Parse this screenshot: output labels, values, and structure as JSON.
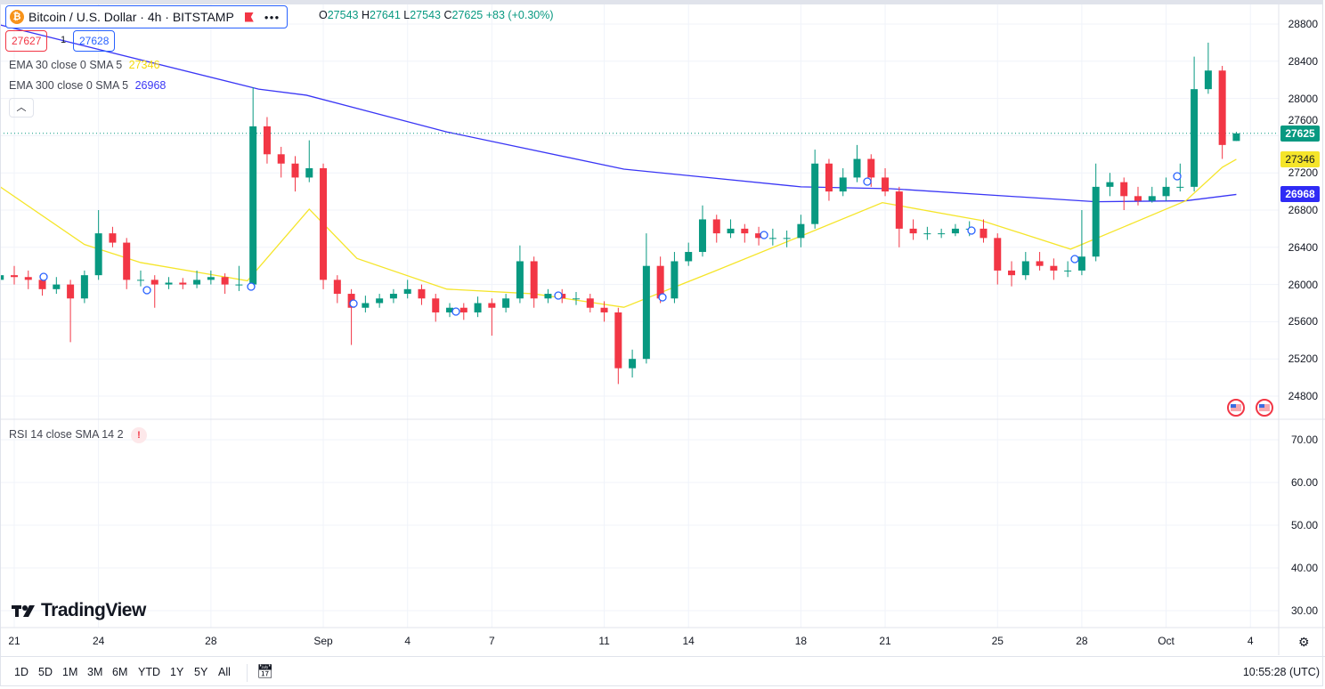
{
  "header": {
    "symbol_title": "Bitcoin / U.S. Dollar · 4h · BITSTAMP",
    "symbol_icon": "bitcoin-icon",
    "ohlc": {
      "o_label": "O",
      "o": "27543",
      "h_label": "H",
      "h": "27641",
      "l_label": "L",
      "l": "27543",
      "c_label": "C",
      "c": "27625",
      "change": "+83 (+0.30%)"
    },
    "sell_price": "27627",
    "spread": "1",
    "buy_price": "27628"
  },
  "indicators": [
    {
      "label": "EMA 30 close 0 SMA 5",
      "value": "27346",
      "color": "#f5e52a"
    },
    {
      "label": "EMA 300 close 0 SMA 5",
      "value": "26968",
      "color": "#3a36f5"
    }
  ],
  "rsi_pane": {
    "label": "RSI 14 close SMA 14 2",
    "warning_icon": "!",
    "ticks": [
      "70.00",
      "60.00",
      "50.00",
      "40.00",
      "30.00"
    ]
  },
  "price_axis": {
    "ticks": [
      "28800",
      "28400",
      "28000",
      "27600",
      "27200",
      "26800",
      "26400",
      "26000",
      "25600",
      "25200",
      "24800"
    ],
    "last_price": "27625",
    "ema30_tag": "27346",
    "ema300_tag": "26968"
  },
  "time_axis": {
    "ticks": [
      {
        "label": "21",
        "day": 0
      },
      {
        "label": "24",
        "day": 3
      },
      {
        "label": "28",
        "day": 7
      },
      {
        "label": "Sep",
        "day": 11
      },
      {
        "label": "4",
        "day": 14
      },
      {
        "label": "7",
        "day": 17
      },
      {
        "label": "11",
        "day": 21
      },
      {
        "label": "14",
        "day": 24
      },
      {
        "label": "18",
        "day": 28
      },
      {
        "label": "21",
        "day": 31
      },
      {
        "label": "25",
        "day": 35
      },
      {
        "label": "28",
        "day": 38
      },
      {
        "label": "Oct",
        "day": 41
      },
      {
        "label": "4",
        "day": 44
      }
    ]
  },
  "toolbar": {
    "ranges": [
      "1D",
      "5D",
      "1M",
      "3M",
      "6M",
      "YTD",
      "1Y",
      "5Y",
      "All"
    ],
    "time": "10:55:28 (UTC)"
  },
  "brand": "TradingView",
  "colors": {
    "up": "#089981",
    "down": "#f23645",
    "ema30": "#f5e52a",
    "ema300": "#3a36f5",
    "accent": "#2962ff"
  },
  "chart_data": {
    "type": "candlestick",
    "ylim": [
      24700,
      28900
    ],
    "candles_note_columns": [
      "day",
      "open",
      "high",
      "low",
      "close"
    ],
    "candles": [
      [
        -0.5,
        26050,
        26180,
        25980,
        26100
      ],
      [
        0,
        26100,
        26200,
        26000,
        26080
      ],
      [
        0.5,
        26080,
        26150,
        25950,
        26050
      ],
      [
        1,
        26050,
        26120,
        25880,
        25950
      ],
      [
        1.5,
        25950,
        26080,
        25900,
        26000
      ],
      [
        2,
        26000,
        26050,
        25380,
        25850
      ],
      [
        2.5,
        25850,
        26150,
        25800,
        26100
      ],
      [
        3,
        26100,
        26800,
        26050,
        26550
      ],
      [
        3.5,
        26550,
        26620,
        26400,
        26450
      ],
      [
        4,
        26450,
        26500,
        25950,
        26050
      ],
      [
        4.5,
        26050,
        26150,
        25980,
        26050
      ],
      [
        5,
        26050,
        26100,
        25750,
        26000
      ],
      [
        5.5,
        26000,
        26080,
        25950,
        26020
      ],
      [
        6,
        26020,
        26070,
        25950,
        26000
      ],
      [
        6.5,
        26000,
        26150,
        25960,
        26050
      ],
      [
        7,
        26050,
        26150,
        26000,
        26080
      ],
      [
        7.5,
        26080,
        26120,
        25900,
        26000
      ],
      [
        8,
        26000,
        26200,
        25930,
        26000
      ],
      [
        8.5,
        26000,
        28120,
        25980,
        27700
      ],
      [
        9,
        27700,
        27800,
        27300,
        27400
      ],
      [
        9.5,
        27400,
        27480,
        27150,
        27300
      ],
      [
        10,
        27300,
        27380,
        27000,
        27150
      ],
      [
        10.5,
        27150,
        27550,
        27100,
        27250
      ],
      [
        11,
        27250,
        27300,
        25950,
        26050
      ],
      [
        11.5,
        26050,
        26100,
        25800,
        25900
      ],
      [
        12,
        25900,
        25950,
        25350,
        25750
      ],
      [
        12.5,
        25750,
        25880,
        25700,
        25800
      ],
      [
        13,
        25800,
        25900,
        25750,
        25850
      ],
      [
        13.5,
        25850,
        25950,
        25800,
        25900
      ],
      [
        14,
        25900,
        26050,
        25850,
        25950
      ],
      [
        14.5,
        25950,
        26000,
        25780,
        25850
      ],
      [
        15,
        25850,
        25900,
        25600,
        25700
      ],
      [
        15.5,
        25700,
        25800,
        25650,
        25750
      ],
      [
        16,
        25750,
        25800,
        25620,
        25700
      ],
      [
        16.5,
        25700,
        25870,
        25650,
        25800
      ],
      [
        17,
        25800,
        25850,
        25450,
        25750
      ],
      [
        17.5,
        25750,
        25900,
        25700,
        25850
      ],
      [
        18,
        25850,
        26420,
        25800,
        26250
      ],
      [
        18.5,
        26250,
        26300,
        25750,
        25850
      ],
      [
        19,
        25850,
        25950,
        25800,
        25900
      ],
      [
        19.5,
        25900,
        25950,
        25800,
        25850
      ],
      [
        20,
        25850,
        25920,
        25780,
        25850
      ],
      [
        20.5,
        25850,
        25900,
        25700,
        25750
      ],
      [
        21,
        25750,
        25820,
        25600,
        25700
      ],
      [
        21.5,
        25700,
        25750,
        24930,
        25100
      ],
      [
        22,
        25100,
        25300,
        25000,
        25200
      ],
      [
        22.5,
        25200,
        26550,
        25150,
        26200
      ],
      [
        23,
        26200,
        26300,
        25800,
        25850
      ],
      [
        23.5,
        25850,
        26350,
        25800,
        26250
      ],
      [
        24,
        26250,
        26450,
        26200,
        26350
      ],
      [
        24.5,
        26350,
        26850,
        26300,
        26700
      ],
      [
        25,
        26700,
        26750,
        26450,
        26550
      ],
      [
        25.5,
        26550,
        26700,
        26500,
        26600
      ],
      [
        26,
        26600,
        26650,
        26450,
        26550
      ],
      [
        26.5,
        26550,
        26620,
        26420,
        26500
      ],
      [
        27,
        26500,
        26600,
        26420,
        26500
      ],
      [
        27.5,
        26500,
        26580,
        26400,
        26500
      ],
      [
        28,
        26500,
        26750,
        26400,
        26650
      ],
      [
        28.5,
        26650,
        27450,
        26600,
        27300
      ],
      [
        29,
        27300,
        27350,
        26900,
        27000
      ],
      [
        29.5,
        27000,
        27250,
        26950,
        27150
      ],
      [
        30,
        27150,
        27500,
        27100,
        27350
      ],
      [
        30.5,
        27350,
        27400,
        27050,
        27150
      ],
      [
        31,
        27150,
        27250,
        26950,
        27000
      ],
      [
        31.5,
        27000,
        27050,
        26400,
        26600
      ],
      [
        32,
        26600,
        26700,
        26480,
        26550
      ],
      [
        32.5,
        26550,
        26620,
        26480,
        26550
      ],
      [
        33,
        26550,
        26600,
        26500,
        26550
      ],
      [
        33.5,
        26550,
        26650,
        26520,
        26600
      ],
      [
        34,
        26600,
        26680,
        26520,
        26600
      ],
      [
        34.5,
        26600,
        26700,
        26450,
        26500
      ],
      [
        35,
        26500,
        26550,
        26000,
        26150
      ],
      [
        35.5,
        26150,
        26250,
        25980,
        26100
      ],
      [
        36,
        26100,
        26350,
        26050,
        26250
      ],
      [
        36.5,
        26250,
        26350,
        26150,
        26200
      ],
      [
        37,
        26200,
        26280,
        26050,
        26150
      ],
      [
        37.5,
        26150,
        26250,
        26080,
        26150
      ],
      [
        38,
        26150,
        26800,
        26100,
        26300
      ],
      [
        38.5,
        26300,
        27300,
        26250,
        27050
      ],
      [
        39,
        27050,
        27200,
        26950,
        27100
      ],
      [
        39.5,
        27100,
        27150,
        26800,
        26950
      ],
      [
        40,
        26950,
        27050,
        26850,
        26900
      ],
      [
        40.5,
        26900,
        27050,
        26880,
        26950
      ],
      [
        41,
        26950,
        27150,
        26900,
        27050
      ],
      [
        41.5,
        27050,
        27300,
        27000,
        27050
      ],
      [
        42,
        27050,
        28450,
        27000,
        28100
      ],
      [
        42.5,
        28100,
        28600,
        28050,
        28300
      ],
      [
        43,
        28300,
        28350,
        27350,
        27500
      ],
      [
        43.5,
        27543,
        27641,
        27543,
        27625
      ]
    ],
    "ema30": [
      [
        -0.5,
        27050
      ],
      [
        2.5,
        26430
      ],
      [
        4.5,
        26236
      ],
      [
        8.3,
        26040
      ],
      [
        10.5,
        26810
      ],
      [
        12.2,
        26280
      ],
      [
        15.4,
        25950
      ],
      [
        18.5,
        25900
      ],
      [
        21.7,
        25755
      ],
      [
        24.9,
        26140
      ],
      [
        28,
        26520
      ],
      [
        30.9,
        26880
      ],
      [
        34.4,
        26690
      ],
      [
        37.6,
        26380
      ],
      [
        39.5,
        26620
      ],
      [
        41.7,
        26900
      ],
      [
        43,
        27260
      ],
      [
        43.5,
        27346
      ]
    ],
    "ema300": [
      [
        -0.5,
        28790
      ],
      [
        8.7,
        28100
      ],
      [
        10.4,
        28035
      ],
      [
        15.4,
        27640
      ],
      [
        21.7,
        27240
      ],
      [
        28,
        27050
      ],
      [
        31.2,
        27030
      ],
      [
        38.5,
        26890
      ],
      [
        41.7,
        26900
      ],
      [
        43.5,
        26968
      ]
    ],
    "last_price": 27625
  }
}
